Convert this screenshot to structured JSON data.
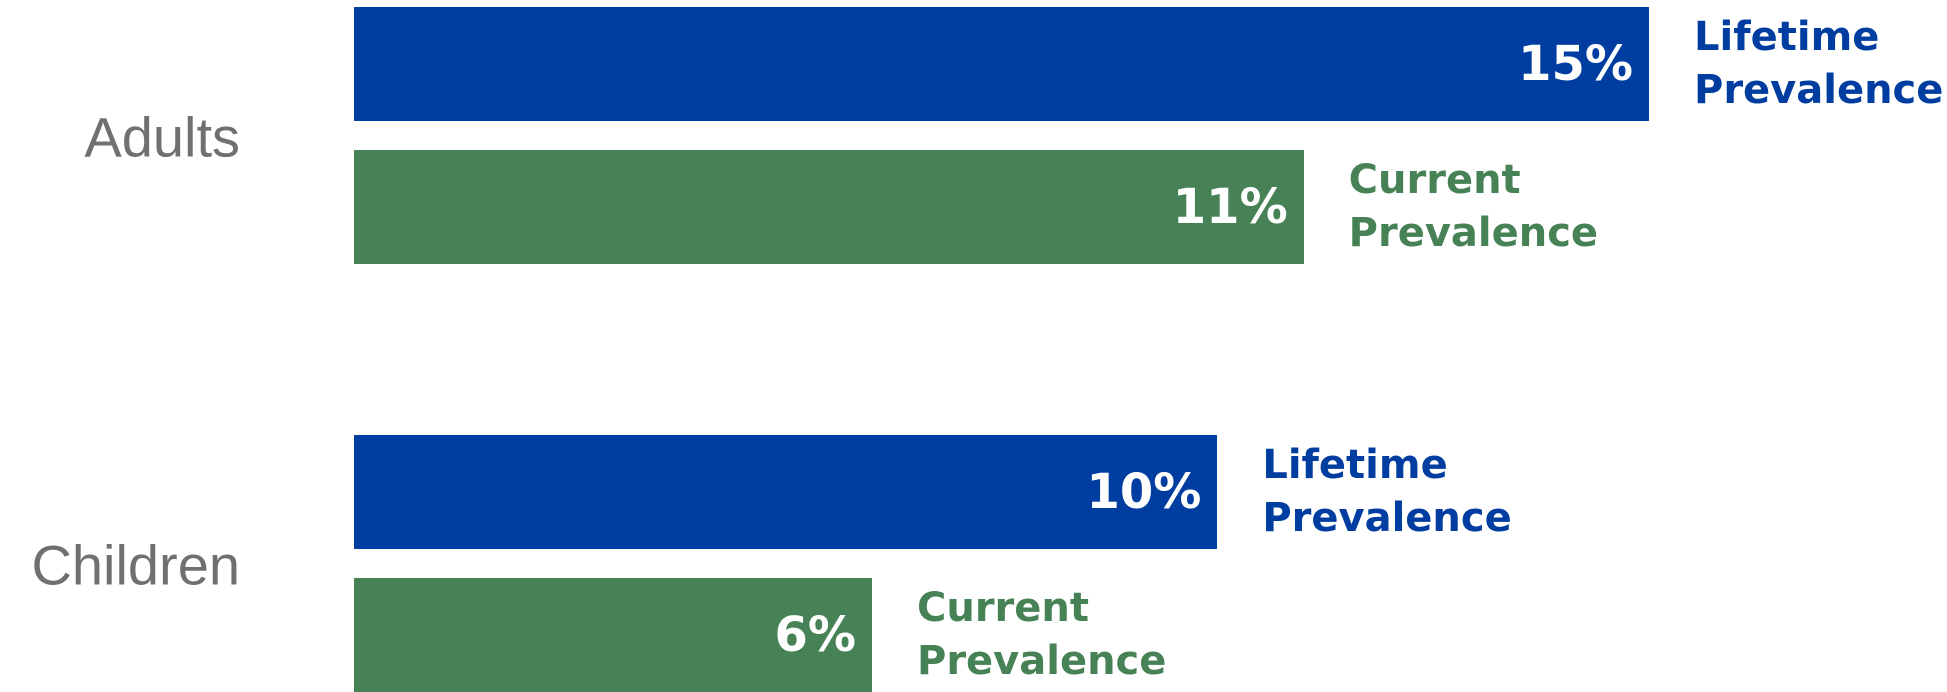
{
  "chart_data": {
    "type": "barh",
    "categories": [
      "Adults",
      "Children"
    ],
    "series": [
      {
        "name": "Lifetime Prevalence",
        "color": "#003da0",
        "values": [
          15,
          10
        ],
        "value_labels": [
          "15%",
          "10%"
        ]
      },
      {
        "name": "Current Prevalence",
        "color": "#468255",
        "values": [
          11,
          6
        ],
        "value_labels": [
          "11%",
          "6%"
        ]
      }
    ]
  }
}
